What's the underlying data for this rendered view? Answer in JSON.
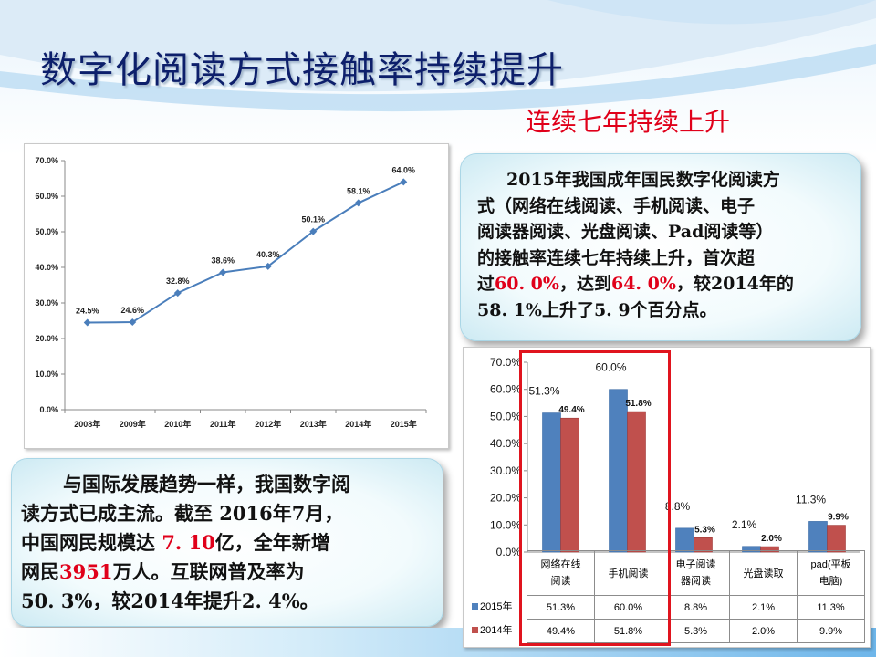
{
  "slide": {
    "title": "数字化阅读方式接触率持续提升",
    "subtitle": "连续七年持续上升"
  },
  "note_right": {
    "line1": "2015年我国成年国民数字化阅读方",
    "line2": "式（网络在线阅读、手机阅读、电子",
    "line3": "阅读器阅读、光盘阅读、Pad阅读等）",
    "line4": "的接触率连续七年持续上升，首次超",
    "line5_pre": "过",
    "line5_hl1": "60. 0%",
    "line5_mid": "，达到",
    "line5_hl2": "64. 0%",
    "line5_post": "，较2014年的",
    "line6": "58. 1%上升了5. 9个百分点。"
  },
  "note_left": {
    "line1": "与国际发展趋势一样，我国数字阅",
    "line2": "读方式已成主流。截至 2016年7月，",
    "line3_pre": "中国网民规模达 ",
    "line3_hl": "7. 10",
    "line3_post": "亿，全年新增",
    "line4_pre": "网民",
    "line4_hl": "3951",
    "line4_post": "万人。互联网普及率为",
    "line5": "50. 3%，较2014年提升2. 4%。"
  },
  "colors": {
    "line": "#4a7ebb",
    "bar_2015": "#4f81bd",
    "bar_2014": "#c0504d",
    "title": "#0d1f6b",
    "accent_red": "#e0001a"
  },
  "chart_data": [
    {
      "type": "line",
      "x": [
        "2008年",
        "2009年",
        "2010年",
        "2011年",
        "2012年",
        "2013年",
        "2014年",
        "2015年"
      ],
      "values": [
        24.5,
        24.6,
        32.8,
        38.6,
        40.3,
        50.1,
        58.1,
        64.0
      ],
      "data_labels": [
        "24.5%",
        "24.6%",
        "32.8%",
        "38.6%",
        "40.3%",
        "50.1%",
        "58.1%",
        "64.0%"
      ],
      "y_ticks": [
        "0.0%",
        "10.0%",
        "20.0%",
        "30.0%",
        "40.0%",
        "50.0%",
        "60.0%",
        "70.0%"
      ],
      "ylim": [
        0,
        70
      ],
      "grid": false,
      "legend": "none"
    },
    {
      "type": "bar",
      "categories": [
        {
          "line1": "网络在线",
          "line2": "阅读"
        },
        {
          "line1": "手机阅读",
          "line2": ""
        },
        {
          "line1": "电子阅读",
          "line2": "器阅读"
        },
        {
          "line1": "光盘读取",
          "line2": ""
        },
        {
          "line1": "pad(平板",
          "line2": "电脑)"
        }
      ],
      "series": [
        {
          "name": "2015年",
          "values": [
            51.3,
            60.0,
            8.8,
            2.1,
            11.3
          ],
          "labels": [
            "51.3%",
            "60.0%",
            "8.8%",
            "2.1%",
            "11.3%"
          ]
        },
        {
          "name": "2014年",
          "values": [
            49.4,
            51.8,
            5.3,
            2.0,
            9.9
          ],
          "labels": [
            "49.4%",
            "51.8%",
            "5.3%",
            "2.0%",
            "9.9%"
          ]
        }
      ],
      "y_ticks": [
        "0.0%",
        "10.0%",
        "20.0%",
        "30.0%",
        "40.0%",
        "50.0%",
        "60.0%",
        "70.0%"
      ],
      "ylim": [
        0,
        70
      ],
      "grid": false,
      "legend": "data table"
    }
  ]
}
